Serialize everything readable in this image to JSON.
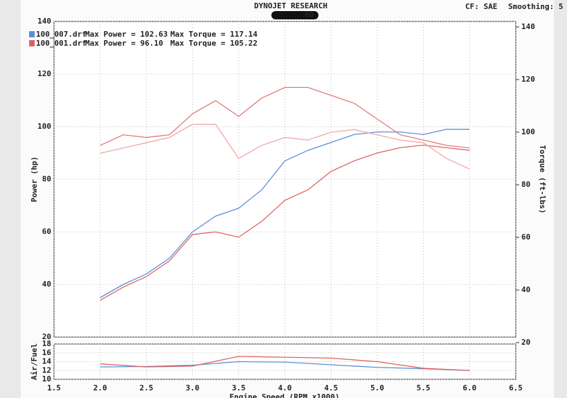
{
  "header": {
    "title": "DYNOJET RESEARCH",
    "subtitle": "HD",
    "cf": "CF: SAE",
    "smoothing": "Smoothing: 5"
  },
  "chart_data": [
    {
      "type": "line",
      "y_label": "Power (hp)",
      "y2_label": "Torque (ft-lbs)",
      "x": [
        2.0,
        2.25,
        2.5,
        2.75,
        3.0,
        3.25,
        3.5,
        3.75,
        4.0,
        4.25,
        4.5,
        4.75,
        5.0,
        5.25,
        5.5,
        5.75,
        6.0
      ],
      "xlim": [
        1.5,
        6.5
      ],
      "xticks": [
        1.5,
        2,
        2.5,
        3,
        3.5,
        4,
        4.5,
        5,
        5.5,
        6,
        6.5
      ],
      "ylim": [
        20,
        140
      ],
      "yticks": [
        20,
        40,
        60,
        80,
        100,
        120,
        140
      ],
      "y2lim": [
        22.1,
        142.1
      ],
      "y2ticks": [
        20,
        40,
        60,
        80,
        100,
        120,
        140
      ],
      "grid": true,
      "series": [
        {
          "name": "100_007.drf",
          "max_power": "Max Power = 102.63",
          "max_torque": "Max Torque = 117.14",
          "color": "#5b8fd6",
          "values": [
            35,
            40,
            44,
            50,
            60,
            66,
            69,
            76,
            87,
            91,
            94,
            97,
            98,
            98,
            97,
            99,
            99
          ]
        },
        {
          "name": "100_001.drf",
          "max_power": "Max Power = 96.10",
          "max_torque": "Max Torque = 105.22",
          "color": "#e06060",
          "values": [
            34,
            39,
            43,
            49,
            59,
            60,
            58,
            64,
            72,
            76,
            83,
            87,
            90,
            92,
            93,
            92,
            91
          ]
        },
        {
          "axis": "y2",
          "color": "#e07a7a",
          "values": [
            95,
            99,
            98,
            99,
            107,
            112,
            106,
            113,
            117,
            117,
            114,
            111,
            105,
            99,
            97,
            95,
            94
          ]
        },
        {
          "axis": "y2",
          "color": "#f2a6a6",
          "values": [
            92,
            94,
            96,
            98,
            103,
            103,
            90,
            95,
            98,
            97,
            100,
            101,
            99,
            97,
            96,
            90,
            86
          ]
        }
      ]
    },
    {
      "type": "line",
      "y_label": "Air/Fuel",
      "x_label": "Engine Speed (RPM x1000)",
      "x": [
        2.0,
        2.5,
        3.0,
        3.5,
        4.0,
        4.5,
        5.0,
        5.5,
        6.0
      ],
      "xlim": [
        1.5,
        6.5
      ],
      "xticks": [
        1.5,
        {
          "value": 2,
          "label": "2.0"
        },
        2.5,
        {
          "value": 3,
          "label": "3.0"
        },
        3.5,
        {
          "value": 4,
          "label": "4.0"
        },
        4.5,
        {
          "value": 5,
          "label": "5.0"
        },
        5.5,
        {
          "value": 6,
          "label": "6.0"
        },
        6.5
      ],
      "ylim": [
        10,
        18
      ],
      "yticks": [
        10,
        12,
        14,
        16,
        18
      ],
      "series": [
        {
          "color": "#5b8fd6",
          "values": [
            12.8,
            12.9,
            13.2,
            14.0,
            13.9,
            13.3,
            12.7,
            12.4,
            12.0
          ]
        },
        {
          "color": "#e06060",
          "values": [
            13.5,
            12.8,
            13.0,
            15.2,
            15.0,
            14.8,
            14.0,
            12.5,
            12.0
          ]
        }
      ]
    }
  ]
}
